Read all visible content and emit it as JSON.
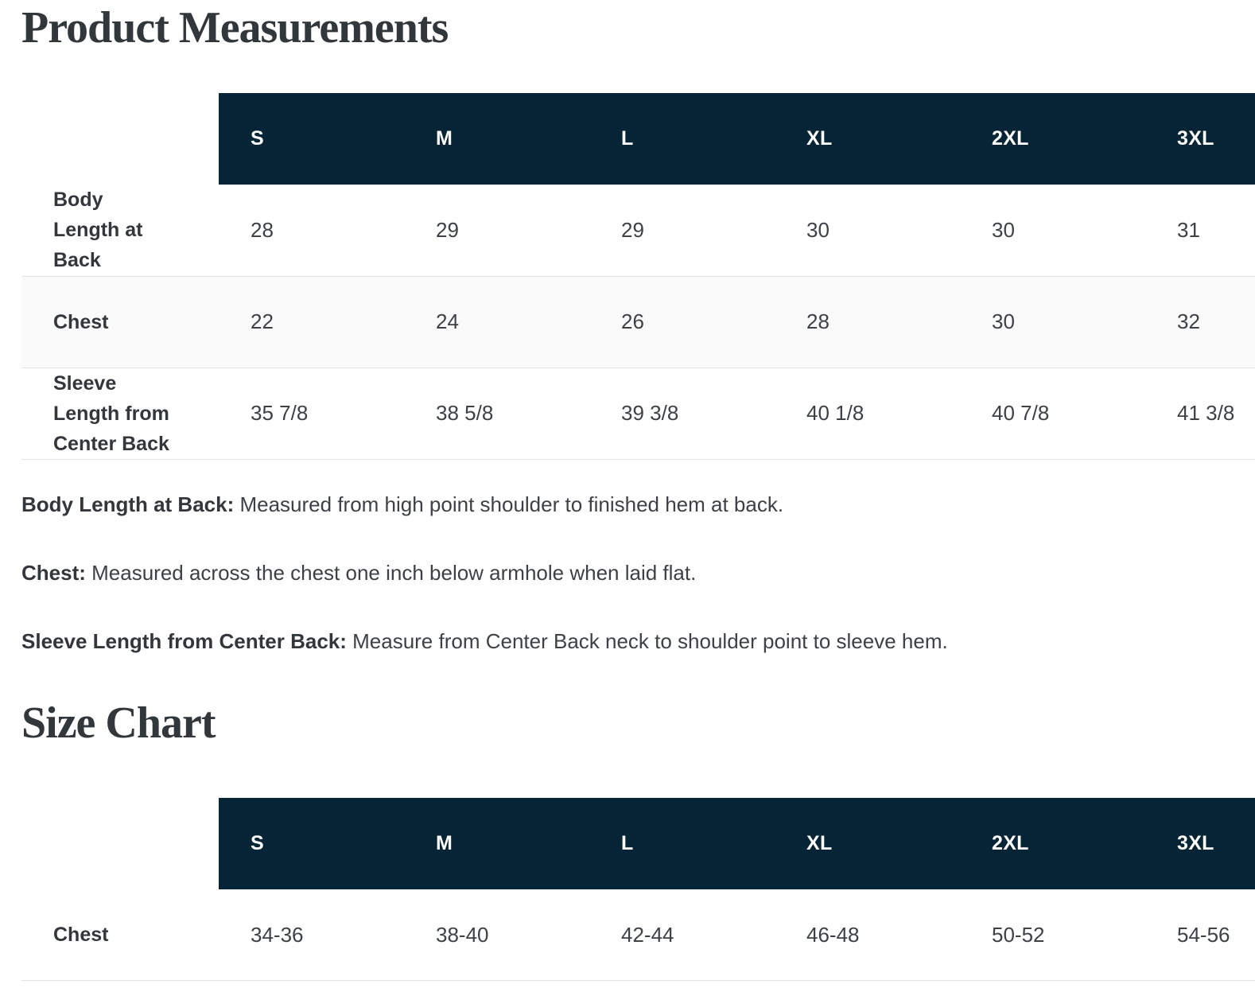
{
  "titles": {
    "product_measurements": "Product Measurements",
    "size_chart": "Size Chart"
  },
  "measurements_table": {
    "columns": [
      "S",
      "M",
      "L",
      "XL",
      "2XL",
      "3XL"
    ],
    "rows": [
      {
        "label": "Body Length at Back",
        "values": [
          "28",
          "29",
          "29",
          "30",
          "30",
          "31"
        ]
      },
      {
        "label": "Chest",
        "values": [
          "22",
          "24",
          "26",
          "28",
          "30",
          "32"
        ]
      },
      {
        "label": "Sleeve Length from Center Back",
        "values": [
          "35 7/8",
          "38 5/8",
          "39 3/8",
          "40 1/8",
          "40 7/8",
          "41 3/8"
        ]
      }
    ]
  },
  "definitions": [
    {
      "term": "Body Length at Back:",
      "text": " Measured from high point shoulder to finished hem at back."
    },
    {
      "term": "Chest:",
      "text": " Measured across the chest one inch below armhole when laid flat."
    },
    {
      "term": "Sleeve Length from Center Back:",
      "text": " Measure from Center Back neck to shoulder point to sleeve hem."
    }
  ],
  "size_chart_table": {
    "columns": [
      "S",
      "M",
      "L",
      "XL",
      "2XL",
      "3XL"
    ],
    "rows": [
      {
        "label": "Chest",
        "values": [
          "34-36",
          "38-40",
          "42-44",
          "46-48",
          "50-52",
          "54-56"
        ]
      }
    ]
  },
  "colors": {
    "header_background": "#052436",
    "header_text": "#ffffff",
    "row_stripe": "#fafafa",
    "row_border": "#e2e2e2",
    "body_text": "#3d4146",
    "label_text": "#33363a",
    "title_text": "#32373c"
  }
}
